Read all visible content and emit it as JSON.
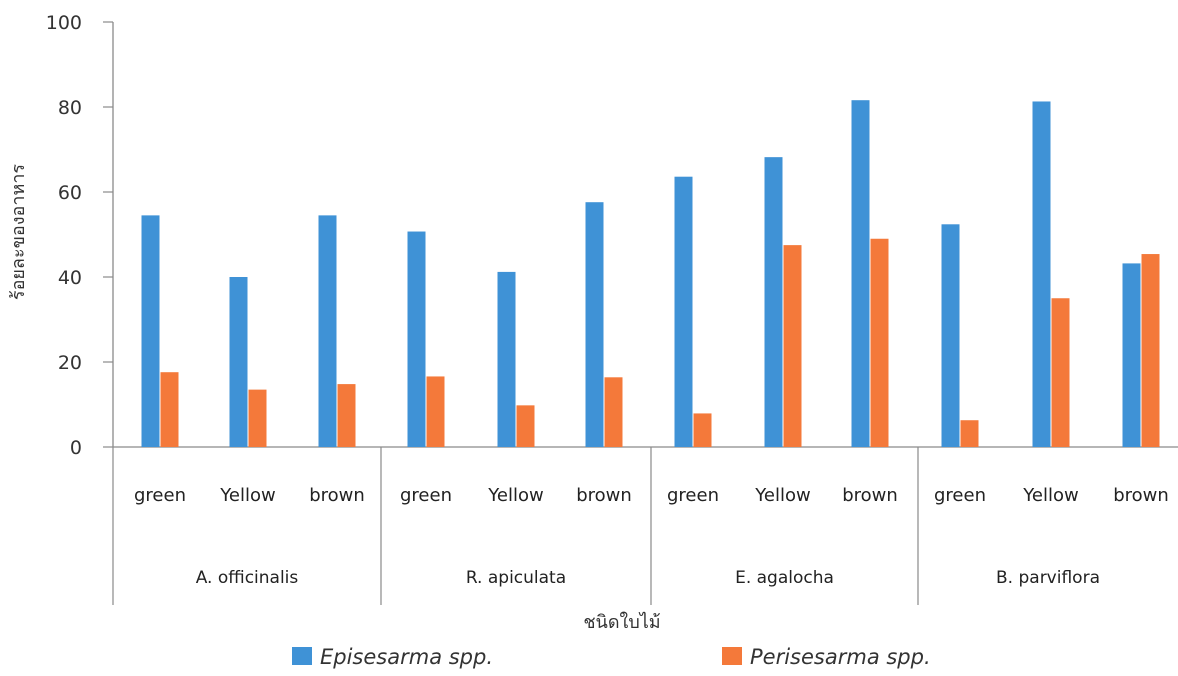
{
  "chart_data": {
    "type": "bar",
    "title": "",
    "ylabel": "ร้อยละของอาหาร",
    "xlabel": "ชนิดใบไม้",
    "ylim": [
      0,
      100
    ],
    "yticks": [
      0,
      20,
      40,
      60,
      80,
      100
    ],
    "grid": false,
    "legend_position": "bottom",
    "groups": [
      {
        "name": "A. officinalis",
        "categories": [
          "green",
          "Yellow",
          "brown"
        ]
      },
      {
        "name": "R. apiculata",
        "categories": [
          "green",
          "Yellow",
          "brown"
        ]
      },
      {
        "name": "E. agalocha",
        "categories": [
          "green",
          "Yellow",
          "brown"
        ]
      },
      {
        "name": "B. parviflora",
        "categories": [
          "green",
          "Yellow",
          "brown"
        ]
      }
    ],
    "series": [
      {
        "name": "Episesarma spp.",
        "color": "#3f92d6",
        "values": [
          54.5,
          40,
          54.5,
          50.7,
          41.2,
          57.6,
          63.6,
          68.2,
          81.6,
          52.4,
          81.3,
          43.2
        ]
      },
      {
        "name": "Perisesarma spp.",
        "color": "#f4793a",
        "values": [
          17.6,
          13.5,
          14.8,
          16.6,
          9.8,
          16.4,
          7.9,
          47.5,
          49.0,
          6.3,
          35.0,
          45.4
        ]
      }
    ]
  }
}
